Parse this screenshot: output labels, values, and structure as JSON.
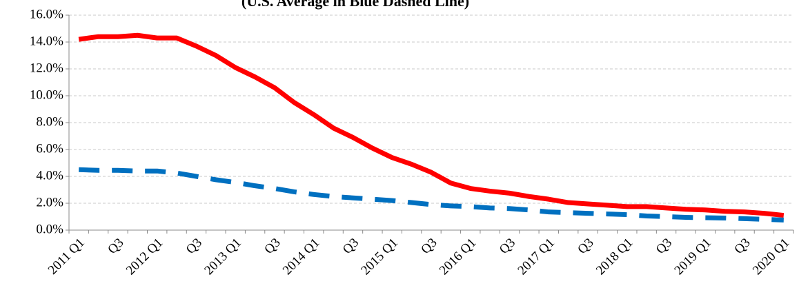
{
  "chart_data": {
    "type": "line",
    "title": "(U.S. Average in Blue Dashed Line)",
    "categories": [
      "2011 Q1",
      null,
      "Q3",
      null,
      "2012 Q1",
      null,
      "Q3",
      null,
      "2013 Q1",
      null,
      "Q3",
      null,
      "2014 Q1",
      null,
      "Q3",
      null,
      "2015 Q1",
      null,
      "Q3",
      null,
      "2016 Q1",
      null,
      "Q3",
      null,
      "2017 Q1",
      null,
      "Q3",
      null,
      "2018 Q1",
      null,
      "Q3",
      null,
      "2019 Q1",
      null,
      "Q3",
      null,
      "2020 Q1"
    ],
    "series": [
      {
        "color": "#ff0000",
        "dashed": false,
        "values": [
          14.2,
          14.4,
          14.4,
          14.5,
          14.3,
          14.3,
          13.7,
          13.0,
          12.1,
          11.4,
          10.6,
          9.5,
          8.6,
          7.6,
          6.9,
          6.1,
          5.4,
          4.9,
          4.3,
          3.5,
          3.1,
          2.9,
          2.75,
          2.5,
          2.3,
          2.05,
          1.95,
          1.85,
          1.75,
          1.75,
          1.65,
          1.55,
          1.5,
          1.4,
          1.35,
          1.25,
          1.1
        ]
      },
      {
        "color": "#0070c0",
        "dashed": true,
        "values": [
          4.5,
          4.45,
          4.45,
          4.4,
          4.4,
          4.25,
          4.0,
          3.75,
          3.55,
          3.3,
          3.1,
          2.85,
          2.65,
          2.5,
          2.4,
          2.3,
          2.2,
          2.05,
          1.9,
          1.8,
          1.75,
          1.65,
          1.6,
          1.5,
          1.35,
          1.3,
          1.25,
          1.2,
          1.15,
          1.05,
          1.0,
          0.95,
          0.92,
          0.9,
          0.85,
          0.8,
          0.75
        ]
      }
    ],
    "ylim": [
      0,
      16
    ],
    "yticks": [
      {
        "value": 0,
        "label": "0.0%"
      },
      {
        "value": 2,
        "label": "2.0%"
      },
      {
        "value": 4,
        "label": "4.0%"
      },
      {
        "value": 6,
        "label": "6.0%"
      },
      {
        "value": 8,
        "label": "8.0%"
      },
      {
        "value": 10,
        "label": "10.0%"
      },
      {
        "value": 12,
        "label": "12.0%"
      },
      {
        "value": 14,
        "label": "14.0%"
      },
      {
        "value": 16,
        "label": "16.0%"
      }
    ],
    "grid": true
  }
}
